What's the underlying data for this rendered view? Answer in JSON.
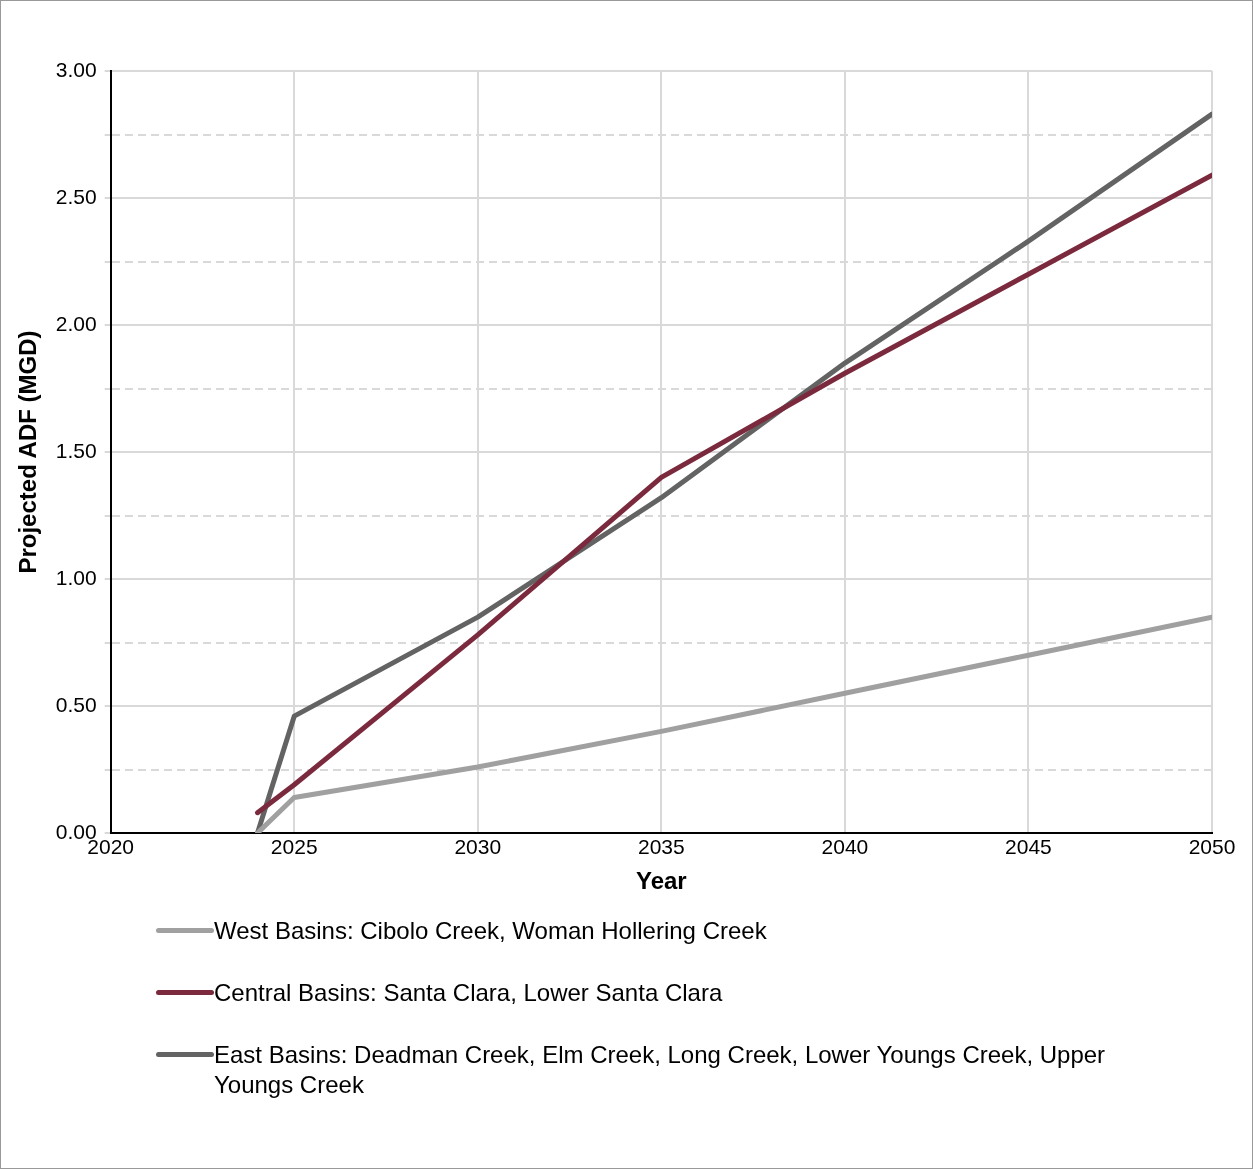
{
  "chart_data": {
    "type": "line",
    "xlabel": "Year",
    "ylabel": "Projected ADF (MGD)",
    "x": [
      2024,
      2025,
      2030,
      2035,
      2040,
      2045,
      2050
    ],
    "series": [
      {
        "name": "West Basins: Cibolo Creek, Woman Hollering Creek",
        "color": "#a0a0a0",
        "values": [
          0.0,
          0.14,
          0.26,
          0.4,
          0.55,
          0.7,
          0.85
        ]
      },
      {
        "name": "Central Basins: Santa Clara, Lower Santa Clara",
        "color": "#7b2a3e",
        "values": [
          0.08,
          0.19,
          0.78,
          1.4,
          1.81,
          2.2,
          2.59
        ]
      },
      {
        "name": "East Basins: Deadman Creek, Elm Creek, Long Creek, Lower Youngs Creek, Upper Youngs Creek",
        "color": "#636363",
        "values": [
          0.0,
          0.46,
          0.85,
          1.32,
          1.85,
          2.33,
          2.83
        ]
      }
    ],
    "xlim": [
      2020,
      2050
    ],
    "xticks": [
      2020,
      2025,
      2030,
      2035,
      2040,
      2045,
      2050
    ],
    "ylim": [
      0,
      3
    ],
    "yticks": [
      {
        "value": 0,
        "label": "0.00"
      },
      {
        "value": 0.25,
        "label": null
      },
      {
        "value": 0.5,
        "label": "0.50"
      },
      {
        "value": 0.75,
        "label": null
      },
      {
        "value": 1,
        "label": "1.00"
      },
      {
        "value": 1.25,
        "label": null
      },
      {
        "value": 1.5,
        "label": "1.50"
      },
      {
        "value": 1.75,
        "label": null
      },
      {
        "value": 2,
        "label": "2.00"
      },
      {
        "value": 2.25,
        "label": null
      },
      {
        "value": 2.5,
        "label": "2.50"
      },
      {
        "value": 2.75,
        "label": null
      },
      {
        "value": 3,
        "label": "3.00"
      }
    ],
    "grid": true,
    "legend": "bottom",
    "marker": "none",
    "line_style": "solid"
  }
}
